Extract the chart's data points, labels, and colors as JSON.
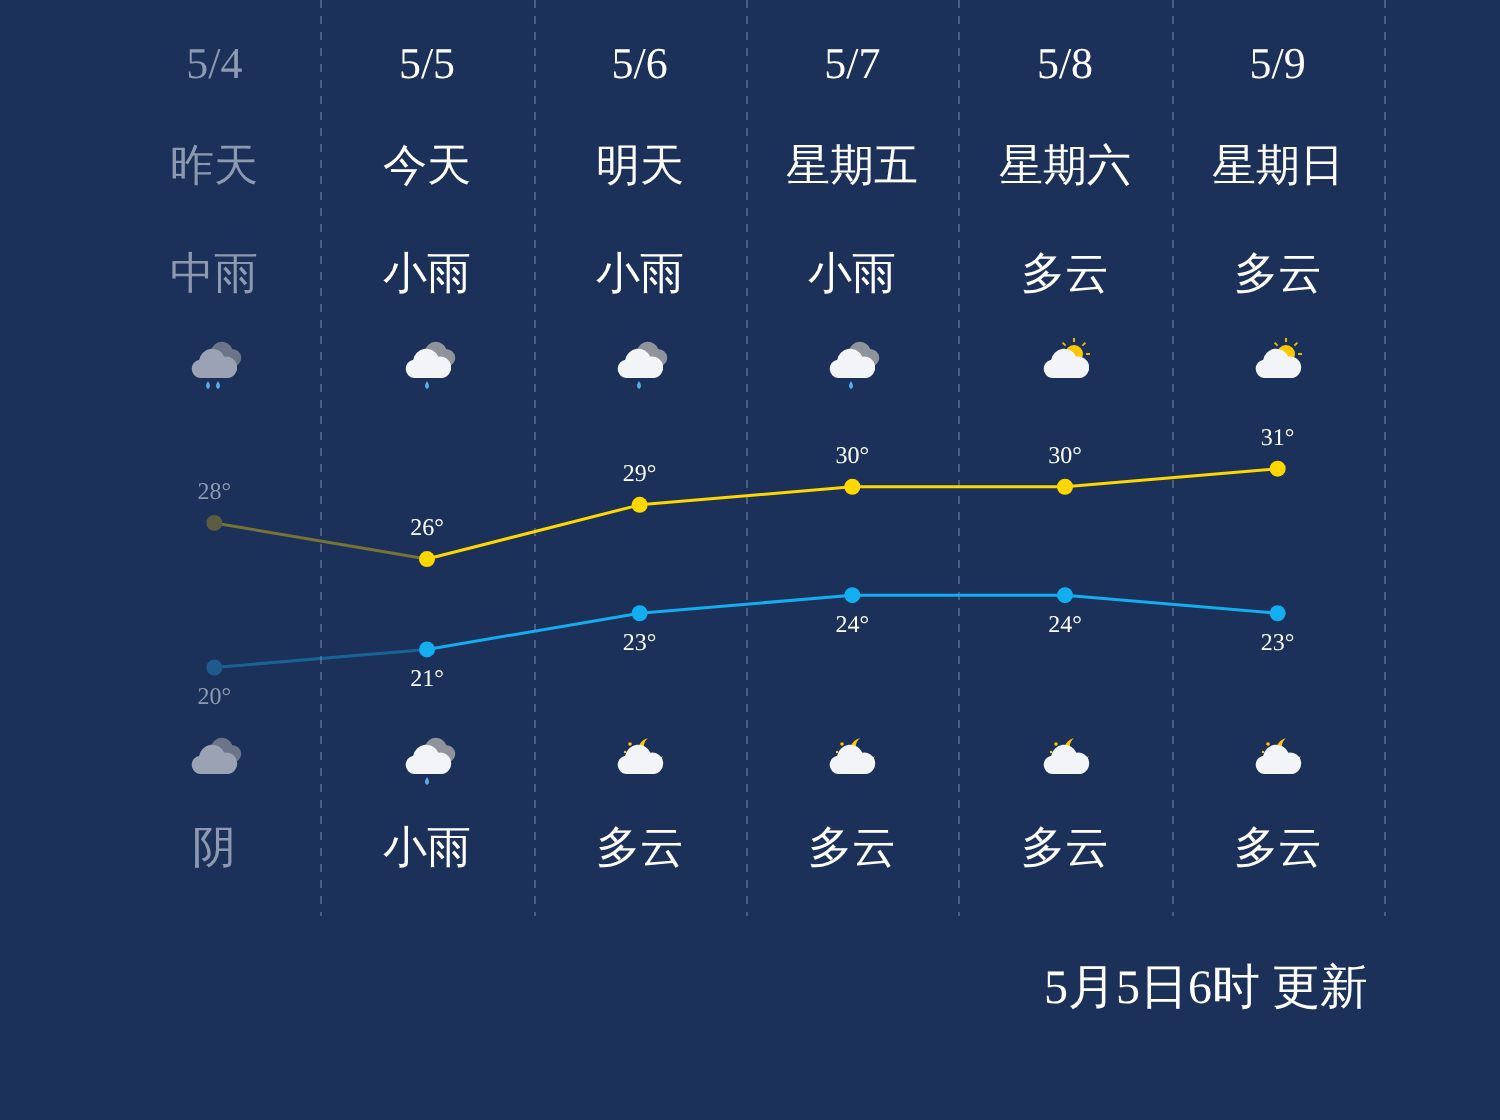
{
  "chart_data": {
    "type": "line",
    "categories": [
      "5/4",
      "5/5",
      "5/6",
      "5/7",
      "5/8",
      "5/9"
    ],
    "series": [
      {
        "color": "#ffd700",
        "colors": [
          "#5b5d42",
          "#ffd700",
          "#ffd700",
          "#ffd700",
          "#ffd700",
          "#ffd700"
        ],
        "values": [
          28,
          26,
          29,
          30,
          30,
          31
        ],
        "value_labels": [
          "28°",
          "26°",
          "29°",
          "30°",
          "30°",
          "31°"
        ]
      },
      {
        "color": "#12aef0",
        "colors": [
          "#1f5a8e",
          "#12aef0",
          "#12aef0",
          "#12aef0",
          "#12aef0",
          "#12aef0"
        ],
        "values": [
          20,
          21,
          23,
          24,
          24,
          23
        ],
        "value_labels": [
          "20°",
          "21°",
          "23°",
          "24°",
          "24°",
          "23°"
        ]
      }
    ],
    "annotations": [
      "昨天",
      "今天",
      "明天",
      "星期五",
      "星期六",
      "星期日",
      "中雨",
      "小雨",
      "小雨",
      "小雨",
      "多云",
      "多云",
      "阴",
      "小雨",
      "多云",
      "多云",
      "多云",
      "多云",
      "5月5日6时 更新"
    ],
    "grid": "x",
    "marker": "circle",
    "line_style": "solid"
  }
}
